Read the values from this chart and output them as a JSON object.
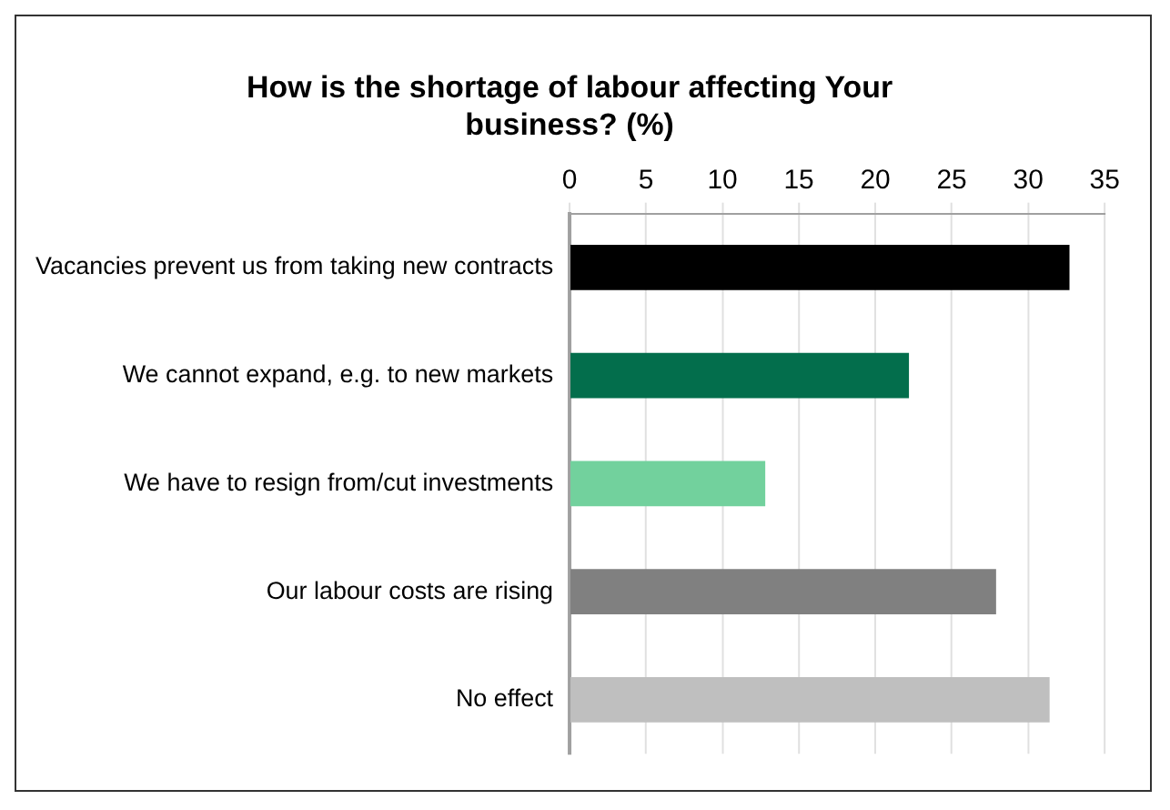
{
  "chart_data": {
    "type": "bar",
    "orientation": "horizontal",
    "title": "How is the shortage of labour affecting Your business? (%)",
    "categories": [
      "Vacancies prevent us from taking new contracts",
      "We cannot expand, e.g. to new markets",
      "We have to resign from/cut investments",
      "Our labour costs are rising",
      "No effect"
    ],
    "values": [
      32.7,
      22.2,
      12.8,
      27.9,
      31.4
    ],
    "colors": [
      "#000000",
      "#036e4c",
      "#72d19d",
      "#808080",
      "#bfbfbf"
    ],
    "xlim": [
      0,
      35
    ],
    "xticks": [
      0,
      5,
      10,
      15,
      20,
      25,
      30,
      35
    ],
    "grid": "x",
    "legend": false
  }
}
